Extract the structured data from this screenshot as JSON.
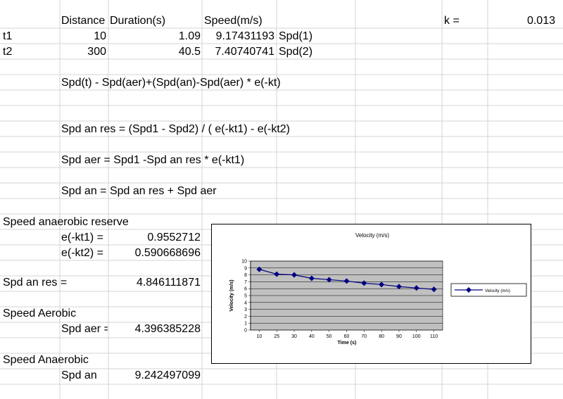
{
  "sheet": {
    "headers": {
      "distance": "Distance",
      "duration": "Duration(s)",
      "speed": "Speed(m/s)"
    },
    "rows": [
      {
        "label": "t1",
        "distance": "10",
        "duration": "1.09",
        "speed": "9.17431193",
        "tag": "Spd(1)"
      },
      {
        "label": "t2",
        "distance": "300",
        "duration": "40.5",
        "speed": "7.40740741",
        "tag": "Spd(2)"
      }
    ],
    "k": {
      "label": "k =",
      "value": "0.013"
    },
    "formulas": [
      "Spd(t) - Spd(aer)+(Spd(an)-Spd(aer) * e(-kt)",
      "Spd an res = (Spd1 - Spd2) / ( e(-kt1) - e(-kt2)",
      "Spd aer = Spd1 -Spd an res * e(-kt1)",
      "Spd an = Spd an res + Spd aer"
    ],
    "reserve": {
      "title": "Speed anaerobic reserve",
      "ekt1_label": "e(-kt1) =",
      "ekt1_value": "0.9552712",
      "ekt2_label": "e(-kt2) =",
      "ekt2_value": "0.590668696",
      "res_label": "Spd an res =",
      "res_value": "4.846111871"
    },
    "aerobic": {
      "title": "Speed Aerobic",
      "label": "Spd aer =",
      "value": "4.396385228"
    },
    "anaerobic": {
      "title": "Speed Anaerobic",
      "label": "Spd an",
      "value": "9.242497099"
    }
  },
  "chart_data": {
    "type": "line",
    "title": "Velocity (m/s)",
    "xlabel": "Time (s)",
    "ylabel": "Velocity (m/s)",
    "categories": [
      "10",
      "25",
      "30",
      "40",
      "50",
      "60",
      "70",
      "80",
      "90",
      "100",
      "110"
    ],
    "series": [
      {
        "name": "Velocity (m/s)",
        "values": [
          8.8,
          8.1,
          8.0,
          7.5,
          7.3,
          7.1,
          6.8,
          6.6,
          6.3,
          6.1,
          5.9
        ]
      }
    ],
    "ylim": [
      0,
      10
    ],
    "yticks": [
      "0",
      "1",
      "2",
      "3",
      "4",
      "5",
      "6",
      "7",
      "8",
      "9",
      "10"
    ],
    "grid": true,
    "legend": "right",
    "colors": {
      "line": "#000080",
      "plot_bg": "#c0c0c0",
      "grid": "#000000"
    }
  }
}
